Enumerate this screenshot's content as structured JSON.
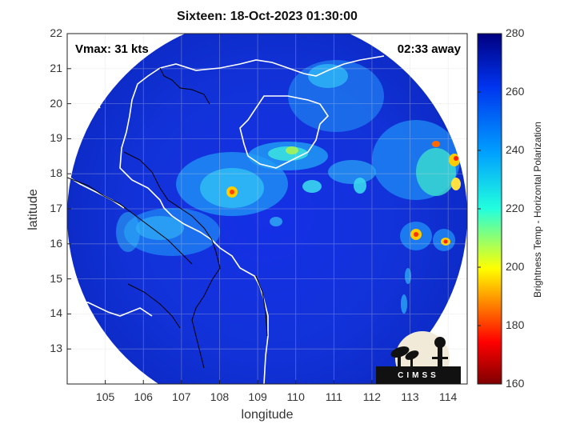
{
  "title": "Sixteen: 18-Oct-2023 01:30:00",
  "annotations": {
    "vmax": "Vmax: 31 kts",
    "time_away": "02:33 away"
  },
  "axes": {
    "xlabel": "longitude",
    "ylabel": "latitude",
    "x_range": [
      104.0,
      114.5
    ],
    "y_range": [
      12.0,
      22.0
    ],
    "x_ticks": [
      "105",
      "106",
      "107",
      "108",
      "109",
      "110",
      "111",
      "112",
      "113",
      "114"
    ],
    "y_ticks": [
      "13",
      "14",
      "15",
      "16",
      "17",
      "18",
      "19",
      "20",
      "21",
      "22"
    ]
  },
  "colorbar": {
    "label": "Brightness Temp - Horizontal Polarization",
    "range": [
      160,
      280
    ],
    "ticks": [
      "160",
      "180",
      "200",
      "220",
      "240",
      "260",
      "280"
    ],
    "colormap": "jet"
  },
  "logo": {
    "text": "CIMSS"
  },
  "colors": {
    "ocean_background": "#ffffff",
    "coastline": "#ffffff",
    "border": "#000000"
  }
}
